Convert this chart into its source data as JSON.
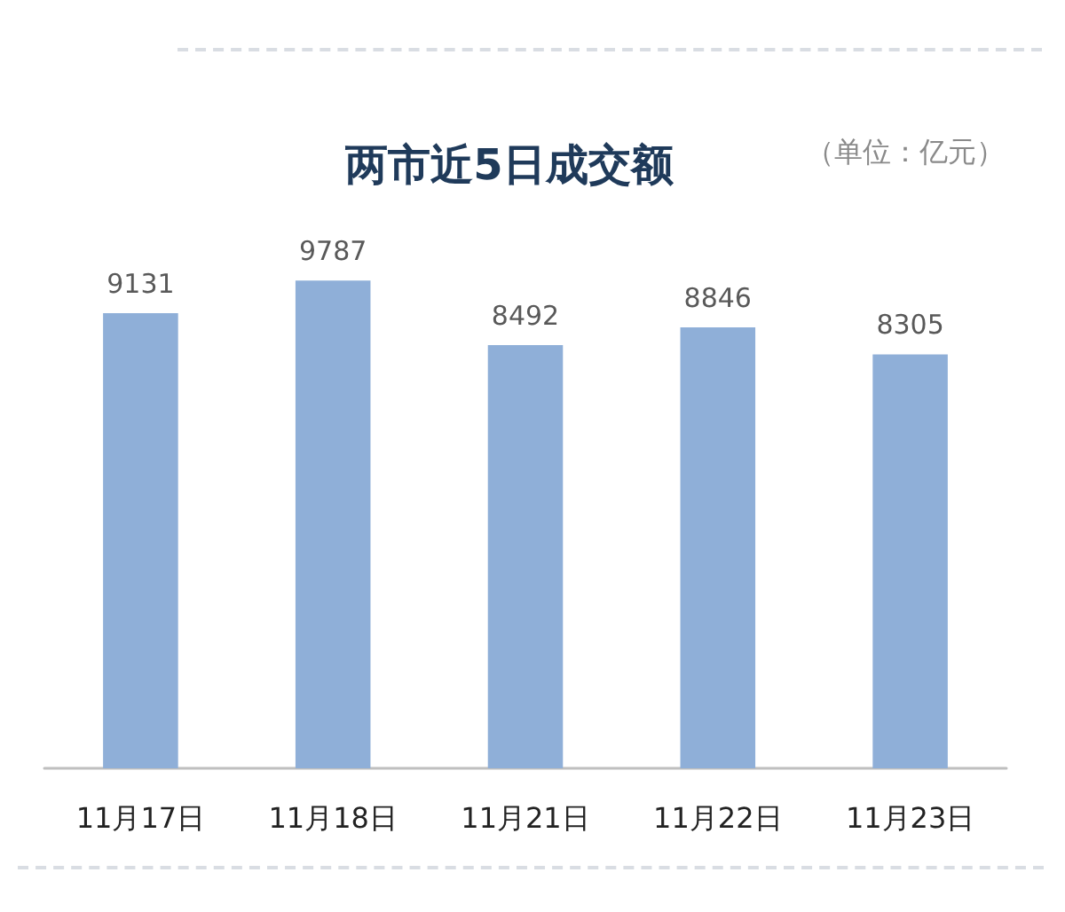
{
  "chart_data": {
    "type": "bar",
    "title": "两市近5日成交额",
    "annotations": [
      "（单位：亿元）"
    ],
    "categories": [
      "11月17日",
      "11月18日",
      "11月21日",
      "11月22日",
      "11月23日"
    ],
    "values": [
      9131,
      9787,
      8492,
      8846,
      8305
    ],
    "color": "#8fafd8",
    "data_labels": true,
    "tick_labels": "x"
  }
}
